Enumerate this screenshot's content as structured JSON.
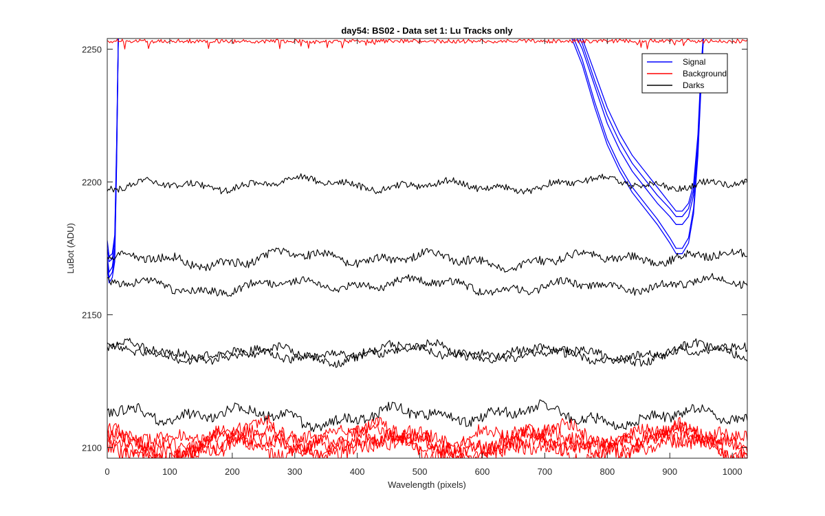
{
  "chart_data": {
    "type": "line",
    "title": "day54: BS02 - Data set 1: Lu Tracks only",
    "xlabel": "Wavelength (pixels)",
    "ylabel": "LuBot (ADU)",
    "xlim": [
      0,
      1024
    ],
    "ylim": [
      2096,
      2254
    ],
    "xticks": [
      "0",
      "100",
      "200",
      "300",
      "400",
      "500",
      "600",
      "700",
      "800",
      "900",
      "1000"
    ],
    "yticks": [
      "2100",
      "2150",
      "2200",
      "2250"
    ],
    "grid": false,
    "legend": {
      "placement": "top-right",
      "entries": [
        {
          "name": "Signal",
          "color": "#0000ff"
        },
        {
          "name": "Background",
          "color": "#ff0000"
        },
        {
          "name": "Darks",
          "color": "#000000"
        }
      ]
    },
    "series": [
      {
        "name": "Signal",
        "color": "#0000ff",
        "group": "signal",
        "x": [
          0,
          3,
          8,
          12,
          15,
          18,
          740,
          760,
          780,
          800,
          820,
          840,
          860,
          880,
          900,
          910,
          920,
          930,
          938,
          945,
          950,
          955
        ],
        "y": [
          2172,
          2166,
          2168,
          2175,
          2210,
          2260,
          2260,
          2250,
          2236,
          2222,
          2212,
          2204,
          2198,
          2192,
          2187,
          2184,
          2184,
          2187,
          2195,
          2215,
          2240,
          2260
        ]
      },
      {
        "name": "Signal",
        "color": "#0000ff",
        "group": "signal",
        "x": [
          0,
          3,
          8,
          12,
          15,
          18,
          740,
          760,
          780,
          800,
          820,
          840,
          860,
          880,
          900,
          910,
          920,
          930,
          938,
          945,
          950,
          955
        ],
        "y": [
          2175,
          2170,
          2171,
          2178,
          2212,
          2260,
          2262,
          2252,
          2238,
          2225,
          2215,
          2207,
          2201,
          2195,
          2190,
          2187,
          2187,
          2190,
          2197,
          2216,
          2241,
          2260
        ]
      },
      {
        "name": "Signal",
        "color": "#0000ff",
        "group": "signal",
        "x": [
          0,
          3,
          8,
          12,
          15,
          18,
          740,
          760,
          780,
          800,
          820,
          840,
          860,
          880,
          900,
          910,
          920,
          930,
          938,
          945,
          950,
          955
        ],
        "y": [
          2178,
          2172,
          2173,
          2180,
          2214,
          2260,
          2264,
          2254,
          2241,
          2228,
          2218,
          2210,
          2204,
          2198,
          2192,
          2189,
          2189,
          2192,
          2199,
          2218,
          2243,
          2260
        ]
      },
      {
        "name": "Signal",
        "color": "#0000ff",
        "group": "signal",
        "x": [
          0,
          3,
          8,
          12,
          15,
          18,
          740,
          760,
          780,
          800,
          820,
          840,
          860,
          880,
          900,
          910,
          920,
          930,
          938,
          945,
          950,
          955
        ],
        "y": [
          2170,
          2164,
          2166,
          2172,
          2208,
          2260,
          2258,
          2246,
          2230,
          2216,
          2206,
          2198,
          2192,
          2186,
          2179,
          2175,
          2175,
          2179,
          2190,
          2212,
          2238,
          2260
        ]
      },
      {
        "name": "Signal",
        "color": "#0000ff",
        "group": "signal",
        "x": [
          0,
          3,
          8,
          12,
          15,
          18,
          740,
          760,
          780,
          800,
          820,
          840,
          860,
          880,
          900,
          910,
          920,
          930,
          938,
          945,
          950,
          955
        ],
        "y": [
          2168,
          2162,
          2164,
          2170,
          2206,
          2260,
          2256,
          2244,
          2228,
          2214,
          2204,
          2196,
          2190,
          2184,
          2177,
          2173,
          2173,
          2177,
          2188,
          2210,
          2236,
          2260
        ]
      },
      {
        "name": "Background",
        "color": "#ff0000",
        "group": "background",
        "base": 2103,
        "amp": 3.5,
        "seed": 11
      },
      {
        "name": "Background",
        "color": "#ff0000",
        "group": "background",
        "base": 2101,
        "amp": 3.5,
        "seed": 12
      },
      {
        "name": "Background",
        "color": "#ff0000",
        "group": "background",
        "base": 2102,
        "amp": 3.5,
        "seed": 13
      },
      {
        "name": "Background",
        "color": "#ff0000",
        "group": "background",
        "base": 2100,
        "amp": 3.5,
        "seed": 14
      },
      {
        "name": "Background",
        "color": "#ff0000",
        "group": "background",
        "base": 2104,
        "amp": 3.0,
        "seed": 15
      },
      {
        "name": "Background",
        "color": "#ff0000",
        "group": "background-top",
        "base": 2253,
        "amp": 1.5,
        "seed": 16
      },
      {
        "name": "Darks",
        "color": "#000000",
        "group": "darks",
        "base": 2199,
        "amp": 1.6,
        "seed": 21
      },
      {
        "name": "Darks",
        "color": "#000000",
        "group": "darks",
        "base": 2171,
        "amp": 2.0,
        "seed": 22
      },
      {
        "name": "Darks",
        "color": "#000000",
        "group": "darks",
        "base": 2161,
        "amp": 1.8,
        "seed": 23
      },
      {
        "name": "Darks",
        "color": "#000000",
        "group": "darks",
        "base": 2136,
        "amp": 2.0,
        "seed": 24
      },
      {
        "name": "Darks",
        "color": "#000000",
        "group": "darks",
        "base": 2135,
        "amp": 2.0,
        "seed": 25
      },
      {
        "name": "Darks",
        "color": "#000000",
        "group": "darks",
        "base": 2112,
        "amp": 2.5,
        "seed": 26
      }
    ]
  }
}
